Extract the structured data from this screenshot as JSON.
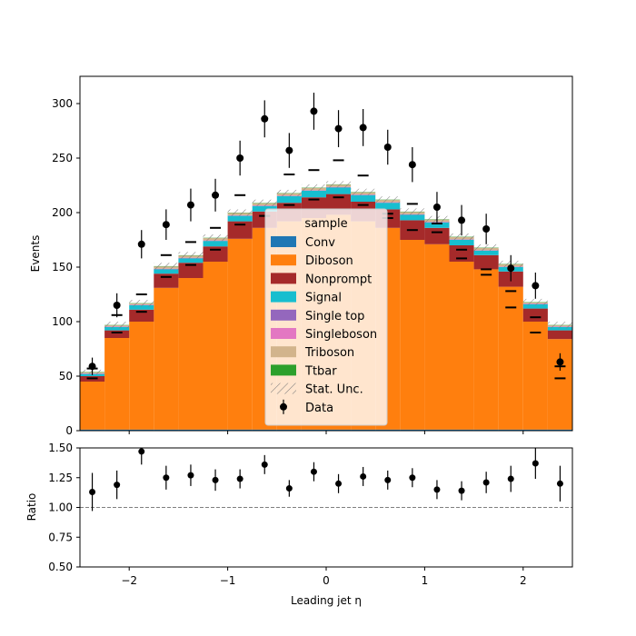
{
  "chart_data": [
    {
      "type": "bar",
      "stacked": true,
      "xlabel": "Leading jet  η",
      "ylabel": "Events",
      "xlim": [
        -2.5,
        2.5
      ],
      "ylim": [
        0,
        325
      ],
      "yticks": [
        0,
        50,
        100,
        150,
        200,
        250,
        300
      ],
      "bin_edges": [
        -2.5,
        -2.25,
        -2.0,
        -1.75,
        -1.5,
        -1.25,
        -1.0,
        -0.75,
        -0.5,
        -0.25,
        0.0,
        0.25,
        0.5,
        0.75,
        1.0,
        1.25,
        1.5,
        1.75,
        2.0,
        2.25,
        2.5
      ],
      "legend": {
        "title": "sample",
        "placement": "center"
      },
      "series": [
        {
          "name": "Conv",
          "color": "#1f77b4",
          "values": [
            1,
            1,
            1,
            1,
            1,
            1,
            1,
            1,
            1,
            1,
            1,
            1,
            1,
            1,
            1,
            1,
            1,
            1,
            1,
            1
          ]
        },
        {
          "name": "Diboson",
          "color": "#ff7f0e",
          "values": [
            44,
            84,
            99,
            130,
            139,
            154,
            175,
            185,
            191,
            194,
            197,
            191,
            185,
            174,
            170,
            154,
            147,
            131,
            99,
            83
          ]
        },
        {
          "name": "Nonprompt",
          "color": "#a52a2a",
          "values": [
            5,
            7,
            11,
            13,
            14,
            14,
            16,
            15,
            17,
            19,
            19,
            18,
            17,
            18,
            15,
            15,
            13,
            14,
            12,
            8
          ]
        },
        {
          "name": "Signal",
          "color": "#17becf",
          "values": [
            2,
            3,
            4,
            4,
            4,
            5,
            5,
            5,
            6,
            6,
            6,
            6,
            6,
            5,
            5,
            5,
            4,
            4,
            4,
            3
          ]
        },
        {
          "name": "Single top",
          "color": "#9467bd",
          "values": [
            0.3,
            0.3,
            0.3,
            0.3,
            0.3,
            0.3,
            0.3,
            0.3,
            0.3,
            0.3,
            0.3,
            0.3,
            0.3,
            0.3,
            0.3,
            0.3,
            0.3,
            0.3,
            0.3,
            0.3
          ]
        },
        {
          "name": "Singleboson",
          "color": "#e377c2",
          "values": [
            0.3,
            0.3,
            0.3,
            0.3,
            0.3,
            0.3,
            0.3,
            0.3,
            0.3,
            0.3,
            0.3,
            0.3,
            0.3,
            0.3,
            0.3,
            0.3,
            0.3,
            0.3,
            0.3,
            0.3
          ]
        },
        {
          "name": "Triboson",
          "color": "#d2b48c",
          "values": [
            1,
            1,
            1,
            2,
            2,
            2,
            2,
            2,
            2,
            2,
            2,
            2,
            2,
            2,
            2,
            2,
            2,
            2,
            1,
            1
          ]
        },
        {
          "name": "Ttbar",
          "color": "#2ca02c",
          "values": [
            0.3,
            0.3,
            0.3,
            0.3,
            0.3,
            0.3,
            0.3,
            0.3,
            0.3,
            0.3,
            0.3,
            0.3,
            0.3,
            0.3,
            0.3,
            0.3,
            0.3,
            0.3,
            0.3,
            0.3
          ]
        }
      ],
      "stat_unc": {
        "name": "Stat. Unc.",
        "values": [
          2,
          3,
          3,
          3,
          3,
          3,
          3,
          3,
          3,
          3,
          3,
          3,
          3,
          3,
          3,
          3,
          3,
          3,
          3,
          3
        ]
      },
      "markers": [
        57,
        106,
        125,
        161,
        173,
        186,
        216,
        197,
        235,
        239,
        248,
        234,
        199,
        208,
        190,
        158,
        148,
        128,
        104,
        59
      ],
      "markers_low": [
        48,
        90,
        109,
        141,
        152,
        166,
        189,
        197,
        207,
        212,
        214,
        207,
        195,
        184,
        182,
        166,
        143,
        113,
        90,
        48
      ],
      "data": {
        "name": "Data",
        "x": [
          -2.375,
          -2.125,
          -1.875,
          -1.625,
          -1.375,
          -1.125,
          -0.875,
          -0.625,
          -0.375,
          -0.125,
          0.125,
          0.375,
          0.625,
          0.875,
          1.125,
          1.375,
          1.625,
          1.875,
          2.125,
          2.375
        ],
        "values": [
          59,
          115,
          171,
          189,
          207,
          216,
          250,
          286,
          257,
          293,
          277,
          278,
          260,
          244,
          205,
          193,
          185,
          149,
          133,
          63
        ],
        "errors": [
          8,
          11,
          13,
          14,
          15,
          15,
          16,
          17,
          16,
          17,
          17,
          17,
          16,
          16,
          14,
          14,
          14,
          12,
          12,
          8
        ]
      }
    },
    {
      "type": "scatter",
      "xlabel": "Leading jet  η",
      "ylabel": "Ratio",
      "xlim": [
        -2.5,
        2.5
      ],
      "ylim": [
        0.5,
        1.5
      ],
      "yticks": [
        0.5,
        0.75,
        1.0,
        1.25,
        1.5
      ],
      "yticklabels": [
        "0.50",
        "0.75",
        "1.00",
        "1.25",
        "1.50"
      ],
      "xticks": [
        -2,
        -1,
        0,
        1,
        2
      ],
      "xticklabels": [
        "−2",
        "−1",
        "0",
        "1",
        "2"
      ],
      "reference_line": 1.0,
      "x": [
        -2.375,
        -2.125,
        -1.875,
        -1.625,
        -1.375,
        -1.125,
        -0.875,
        -0.625,
        -0.375,
        -0.125,
        0.125,
        0.375,
        0.625,
        0.875,
        1.125,
        1.375,
        1.625,
        1.875,
        2.125,
        2.375
      ],
      "values": [
        1.13,
        1.19,
        1.47,
        1.25,
        1.27,
        1.23,
        1.24,
        1.36,
        1.16,
        1.3,
        1.2,
        1.26,
        1.23,
        1.25,
        1.15,
        1.14,
        1.21,
        1.24,
        1.37,
        1.2
      ],
      "errors": [
        0.16,
        0.12,
        0.11,
        0.1,
        0.09,
        0.09,
        0.08,
        0.08,
        0.07,
        0.08,
        0.08,
        0.08,
        0.08,
        0.08,
        0.08,
        0.08,
        0.09,
        0.11,
        0.13,
        0.15
      ]
    }
  ]
}
